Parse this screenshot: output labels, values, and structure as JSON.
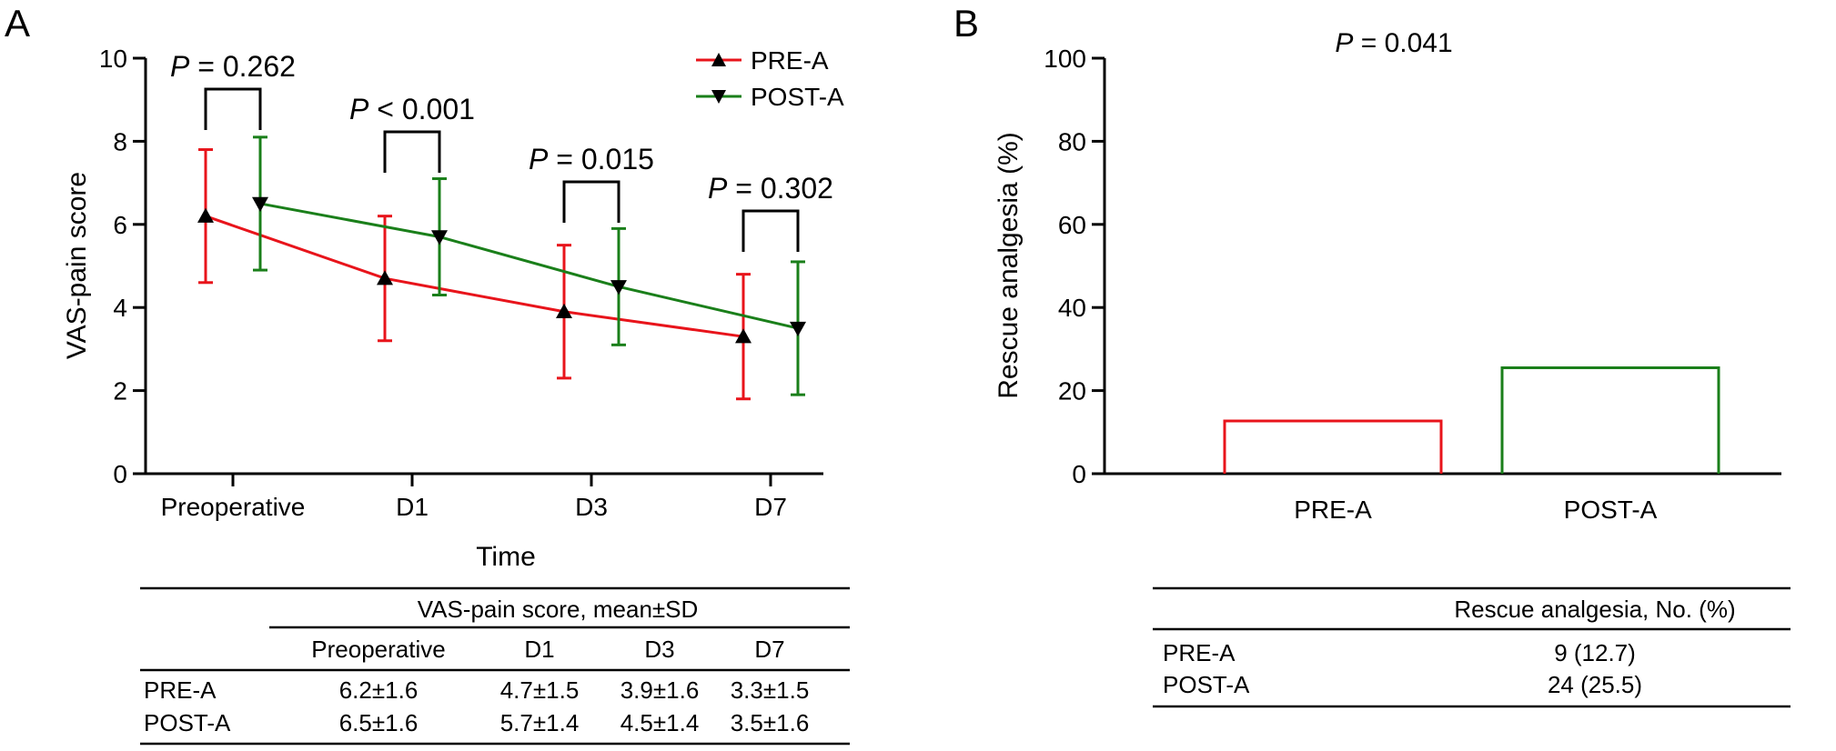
{
  "panel_a": {
    "label": "A",
    "chart_data": {
      "type": "line",
      "title": "",
      "xlabel": "Time",
      "ylabel": "VAS-pain score",
      "ylim": [
        0,
        10
      ],
      "yticks": [
        "0",
        "2",
        "4",
        "6",
        "8",
        "10"
      ],
      "categories": [
        "Preoperative",
        "D1",
        "D3",
        "D7"
      ],
      "series": [
        {
          "name": "PRE-A",
          "color": "#e8141b",
          "marker": "triangle-up",
          "values": [
            6.2,
            4.7,
            3.9,
            3.3
          ],
          "sd": [
            1.6,
            1.5,
            1.6,
            1.5
          ]
        },
        {
          "name": "POST-A",
          "color": "#1a7f1a",
          "marker": "triangle-down",
          "values": [
            6.5,
            5.7,
            4.5,
            3.5
          ],
          "sd": [
            1.6,
            1.4,
            1.4,
            1.6
          ]
        }
      ],
      "annotations": [
        {
          "prefix": "P",
          "text": " = 0.262"
        },
        {
          "prefix": "P",
          "text": " < 0.001"
        },
        {
          "prefix": "P",
          "text": " = 0.015"
        },
        {
          "prefix": "P",
          "text": " = 0.302"
        }
      ],
      "legend": "top-right"
    },
    "table": {
      "group_header": "VAS-pain score, mean±SD",
      "columns": [
        "Preoperative",
        "D1",
        "D3",
        "D7"
      ],
      "rows": [
        {
          "label": "PRE-A",
          "cells": [
            "6.2±1.6",
            "4.7±1.5",
            "3.9±1.6",
            "3.3±1.5"
          ]
        },
        {
          "label": "POST-A",
          "cells": [
            "6.5±1.6",
            "5.7±1.4",
            "4.5±1.4",
            "3.5±1.6"
          ]
        }
      ]
    }
  },
  "panel_b": {
    "label": "B",
    "chart_data": {
      "type": "bar",
      "title": "",
      "ylabel": "Rescue analgesia (%)",
      "ylim": [
        0,
        100
      ],
      "yticks": [
        "0",
        "20",
        "40",
        "60",
        "80",
        "100"
      ],
      "categories": [
        "PRE-A",
        "POST-A"
      ],
      "values": [
        12.7,
        25.5
      ],
      "colors": [
        "#e8141b",
        "#1a7f1a"
      ],
      "annotation": {
        "prefix": "P",
        "text": " = 0.041"
      }
    },
    "table": {
      "header": "Rescue analgesia, No. (%)",
      "rows": [
        {
          "label": "PRE-A",
          "value": "9 (12.7)"
        },
        {
          "label": "POST-A",
          "value": "24 (25.5)"
        }
      ]
    }
  }
}
